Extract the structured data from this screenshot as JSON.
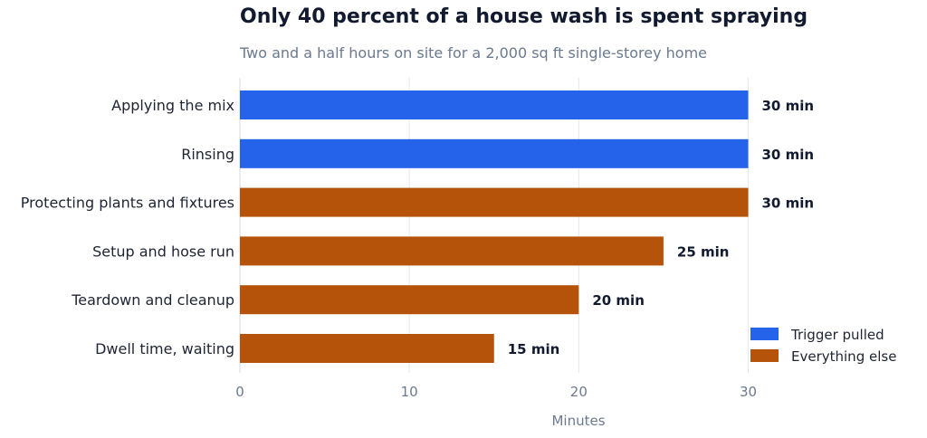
{
  "chart_data": {
    "type": "bar",
    "orientation": "horizontal",
    "title": "Only 40 percent of a house wash is spent spraying",
    "subtitle": "Two and a half hours on site for a 2,000 sq ft single-storey home",
    "xlabel": "Minutes",
    "ylabel": "",
    "xlim": [
      0,
      32
    ],
    "xticks": [
      0,
      10,
      20,
      30
    ],
    "grid": "vertical",
    "legend_position": "bottom-right",
    "categories": [
      "Applying the mix",
      "Rinsing",
      "Protecting plants and fixtures",
      "Setup and hose run",
      "Teardown and cleanup",
      "Dwell time, waiting"
    ],
    "values": [
      30,
      30,
      30,
      25,
      20,
      15
    ],
    "value_labels": [
      "30 min",
      "30 min",
      "30 min",
      "25 min",
      "20 min",
      "15 min"
    ],
    "groups": [
      "Trigger pulled",
      "Trigger pulled",
      "Everything else",
      "Everything else",
      "Everything else",
      "Everything else"
    ],
    "legend": [
      {
        "name": "Trigger pulled",
        "color": "#2563eb"
      },
      {
        "name": "Everything else",
        "color": "#b45309"
      }
    ]
  }
}
